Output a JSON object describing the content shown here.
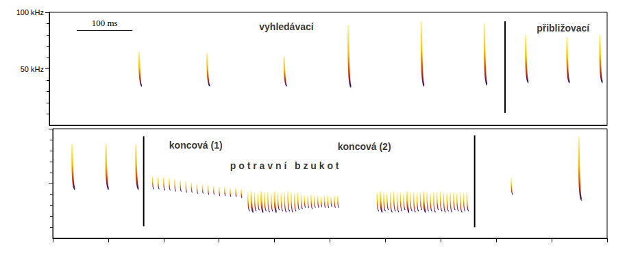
{
  "chart_data": [
    {
      "type": "spectrogram",
      "xlim": [
        0,
        1000
      ],
      "ylim": [
        0,
        100
      ],
      "yticks": [
        {
          "value": 50,
          "label": "50 kHz"
        },
        {
          "value": 100,
          "label": "100 kHz"
        }
      ],
      "tick_labels": "y",
      "calls": {
        "t": [
          161,
          283,
          421,
          536,
          667,
          780,
          854,
          928,
          987
        ],
        "f_high": [
          65,
          64,
          61,
          89,
          92,
          90,
          80,
          78,
          80
        ],
        "f_low": [
          35,
          35,
          35,
          34,
          35,
          36,
          38,
          38,
          38
        ]
      },
      "dividers": [
        {
          "t": 817,
          "f": [
            11,
            92
          ]
        }
      ],
      "annotations": [
        {
          "text": "vyhledávací",
          "x": 425,
          "y": 87
        },
        {
          "text": "přibližovací",
          "x": 921,
          "y": 86
        }
      ],
      "scale_bar": {
        "label": "100 ms",
        "x": [
          49,
          149
        ],
        "y": 84
      }
    },
    {
      "type": "spectrogram",
      "xlim": [
        0,
        1000
      ],
      "ylim": [
        0,
        100
      ],
      "xticks": [
        0,
        100,
        200,
        300,
        400,
        500,
        600,
        700,
        800,
        900,
        1000
      ],
      "yticks": [
        50,
        100
      ],
      "tick_labels": false,
      "calls": {
        "t": [
          35,
          96,
          150,
          180,
          190,
          200,
          210,
          220,
          230,
          240,
          250,
          260,
          270,
          280,
          290,
          300,
          310,
          320,
          330,
          340,
          352,
          358,
          364,
          370,
          376,
          382,
          388,
          394,
          400,
          406,
          412,
          418,
          424,
          430,
          436,
          442,
          448,
          454,
          460,
          466,
          472,
          478,
          484,
          490,
          496,
          502,
          508,
          514,
          585,
          591,
          597,
          603,
          609,
          615,
          621,
          627,
          633,
          639,
          645,
          651,
          657,
          663,
          669,
          675,
          681,
          687,
          693,
          699,
          705,
          711,
          717,
          723,
          729,
          735,
          741,
          747,
          827,
          949
        ],
        "f_high": [
          86,
          86,
          86,
          57,
          56,
          56,
          55,
          54,
          53,
          52,
          51,
          50,
          49,
          49,
          48,
          47,
          47,
          46,
          46,
          45,
          42,
          43,
          42,
          41,
          43,
          42,
          42,
          41,
          43,
          42,
          41,
          42,
          43,
          42,
          41,
          42,
          40,
          39,
          39,
          40,
          39,
          39,
          38,
          39,
          39,
          38,
          39,
          39,
          42,
          43,
          42,
          41,
          42,
          43,
          42,
          42,
          41,
          43,
          42,
          42,
          41,
          42,
          43,
          42,
          41,
          42,
          42,
          43,
          42,
          41,
          42,
          42,
          41,
          42,
          41,
          42,
          55,
          93
        ],
        "f_low": [
          45,
          45,
          45,
          45,
          45,
          44,
          44,
          43,
          43,
          42,
          42,
          41,
          41,
          40,
          40,
          39,
          39,
          38,
          38,
          37,
          25,
          24,
          25,
          26,
          24,
          25,
          24,
          25,
          24,
          26,
          25,
          24,
          25,
          24,
          25,
          26,
          27,
          28,
          28,
          27,
          28,
          28,
          29,
          28,
          28,
          29,
          28,
          28,
          25,
          24,
          25,
          26,
          24,
          25,
          24,
          25,
          26,
          24,
          25,
          24,
          25,
          26,
          24,
          25,
          25,
          24,
          26,
          25,
          24,
          25,
          24,
          26,
          25,
          24,
          25,
          25,
          40,
          35
        ]
      },
      "dividers": [
        {
          "t": 164,
          "f": [
            11,
            93
          ]
        },
        {
          "t": 761,
          "f": [
            10,
            94
          ]
        }
      ],
      "annotations": [
        {
          "text": "koncová (1)",
          "x": 258,
          "y": 85
        },
        {
          "text": "koncová (2)",
          "x": 562,
          "y": 84
        },
        {
          "text": "p o t r a v n í   b z u k o t",
          "x": 418,
          "y": 66
        }
      ]
    }
  ]
}
